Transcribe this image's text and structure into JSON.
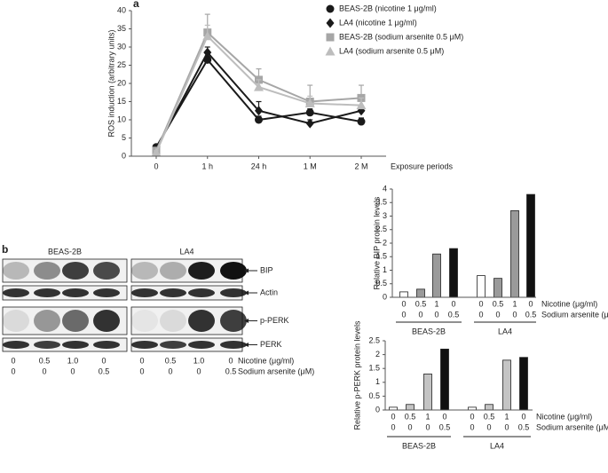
{
  "chart_data": [
    {
      "type": "line",
      "panel": "a",
      "y_label": "ROS induction (arbitrary units)",
      "x_label": "Exposure periods",
      "categories": [
        "0",
        "1 h",
        "24 h",
        "1 M",
        "2 M"
      ],
      "ylim": [
        0,
        40
      ],
      "yticks": [
        0,
        5,
        10,
        15,
        20,
        25,
        30,
        35,
        40
      ],
      "series": [
        {
          "name": "BEAS-2B (nicotine 1 μg/ml)",
          "color": "#1a1a1a",
          "marker": "circle",
          "values": [
            2.5,
            26.5,
            10,
            12,
            9.5
          ],
          "errors": [
            0.5,
            1,
            1,
            1,
            1
          ]
        },
        {
          "name": "LA4 (nicotine 1 μg/ml)",
          "color": "#1a1a1a",
          "marker": "diamond",
          "values": [
            2,
            28.5,
            12.5,
            9,
            12.5
          ],
          "errors": [
            0.5,
            1.5,
            2.5,
            1,
            1
          ]
        },
        {
          "name": "BEAS-2B (sodium arsenite 0.5 μM)",
          "color": "#a6a6a6",
          "marker": "square",
          "values": [
            1.5,
            34,
            21,
            15,
            16
          ],
          "errors": [
            0.5,
            5,
            3,
            4.5,
            3.5
          ]
        },
        {
          "name": "LA4 (sodium arsenite 0.5 μM)",
          "color": "#bdbdbd",
          "marker": "triangle",
          "values": [
            1,
            33,
            19,
            14.5,
            14
          ],
          "errors": [
            0.5,
            3,
            2,
            2,
            2
          ]
        }
      ]
    },
    {
      "type": "bar",
      "y_label": "Relative BIP protein levels",
      "ylim": [
        0,
        4
      ],
      "yticks": [
        0,
        0.5,
        1,
        1.5,
        2,
        2.5,
        3,
        3.5,
        4
      ],
      "values": [
        0.2,
        0.3,
        1.6,
        1.8,
        0.8,
        0.7,
        3.2,
        3.8
      ],
      "colors": [
        "#ffffff",
        "#9a9a9a",
        "#9a9a9a",
        "#111111",
        "#ffffff",
        "#9a9a9a",
        "#9a9a9a",
        "#111111"
      ],
      "rows": [
        {
          "label": "Nicotine (μg/ml)",
          "values": [
            "0",
            "0.5",
            "1",
            "0",
            "0",
            "0.5",
            "1",
            "0"
          ]
        },
        {
          "label": "Sodium arsenite (μM)",
          "values": [
            "0",
            "0",
            "0",
            "0.5",
            "0",
            "0",
            "0",
            "0.5"
          ]
        }
      ],
      "groups": [
        "BEAS-2B",
        "LA4"
      ]
    },
    {
      "type": "bar",
      "y_label": "Relative p-PERK protein levels",
      "ylim": [
        0,
        2.5
      ],
      "yticks": [
        0,
        0.5,
        1,
        1.5,
        2,
        2.5
      ],
      "values": [
        0.1,
        0.2,
        1.3,
        2.2,
        0.1,
        0.2,
        1.8,
        1.9
      ],
      "colors": [
        "#ffffff",
        "#c4c4c4",
        "#c4c4c4",
        "#111111",
        "#ffffff",
        "#c4c4c4",
        "#c4c4c4",
        "#111111"
      ],
      "rows": [
        {
          "label": "Nicotine (μg/ml)",
          "values": [
            "0",
            "0.5",
            "1",
            "0",
            "0",
            "0.5",
            "1",
            "0"
          ]
        },
        {
          "label": "Sodium arsenite (μM)",
          "values": [
            "0",
            "0",
            "0",
            "0.5",
            "0",
            "0",
            "0",
            "0.5"
          ]
        }
      ],
      "groups": [
        "BEAS-2B",
        "LA4"
      ]
    }
  ],
  "blot": {
    "panel": "b",
    "cells": [
      "BEAS-2B",
      "LA4"
    ],
    "bands": [
      "BIP",
      "Actin",
      "p-PERK",
      "PERK"
    ],
    "nicotine": [
      [
        "0",
        "0.5",
        "1.0",
        "0"
      ],
      [
        "0",
        "0.5",
        "1.0",
        "0"
      ]
    ],
    "arsenite": [
      [
        "0",
        "0",
        "0",
        "0.5"
      ],
      [
        "0",
        "0",
        "0",
        "0.5"
      ]
    ],
    "row_labels": [
      "Nicotine (μg/ml)",
      "Sodium arsenite (μM)"
    ]
  }
}
